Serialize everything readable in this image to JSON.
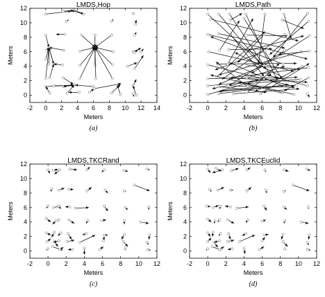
{
  "chart_data": [
    {
      "type": "vector-field",
      "title": "LMDS,Hop",
      "caption": "(a)",
      "xlabel": "Meters",
      "ylabel": "Meters",
      "xlim": [
        -2,
        14
      ],
      "ylim": [
        -1,
        12
      ],
      "xticks": [
        -2,
        0,
        2,
        4,
        6,
        8,
        10,
        12,
        14
      ],
      "yticks": [
        0,
        2,
        4,
        6,
        8,
        10,
        12
      ],
      "vectors": [
        [
          0,
          11.2,
          3.2,
          11.6
        ],
        [
          2.2,
          11.6,
          3.5,
          11.7
        ],
        [
          3.5,
          11.8,
          4.8,
          11.2
        ],
        [
          4.8,
          11.2,
          3.2,
          11.7
        ],
        [
          11,
          11.3,
          11.2,
          11.2
        ],
        [
          2.6,
          10.2,
          2.9,
          10.4
        ],
        [
          8.3,
          10.2,
          8.5,
          10.5
        ],
        [
          11.3,
          9.8,
          11.4,
          10.4
        ],
        [
          0,
          8.3,
          0.4,
          6.6
        ],
        [
          2.4,
          8.4,
          1.3,
          8.4
        ],
        [
          4.5,
          8.3,
          6.2,
          6.6
        ],
        [
          6.2,
          8.3,
          6.2,
          6.6
        ],
        [
          8.3,
          8.3,
          6.2,
          6.6
        ],
        [
          11.2,
          8.3,
          11.4,
          8.7
        ],
        [
          0.1,
          6.2,
          0.4,
          6.6
        ],
        [
          2.3,
          6.2,
          0.4,
          6.6
        ],
        [
          4.3,
          6.1,
          6.2,
          6.6
        ],
        [
          6.2,
          6.1,
          6.2,
          6.6
        ],
        [
          8.5,
          6,
          6.2,
          6.6
        ],
        [
          11,
          6,
          12,
          6.5
        ],
        [
          11.2,
          5.9,
          11.6,
          6.3
        ],
        [
          12,
          6,
          12.3,
          6.4
        ],
        [
          0,
          5,
          0.4,
          6.6
        ],
        [
          0.4,
          6.6,
          1,
          4.3
        ],
        [
          1,
          4.3,
          0.4,
          6.6
        ],
        [
          0.4,
          4.3,
          0.4,
          6.6
        ],
        [
          2.1,
          4.2,
          1,
          4.3
        ],
        [
          4.3,
          4.1,
          6.2,
          6.6
        ],
        [
          6.2,
          4.1,
          6.2,
          6.6
        ],
        [
          8.4,
          4.2,
          6.2,
          6.6
        ],
        [
          10.3,
          4,
          11.5,
          4.5
        ],
        [
          11.2,
          3.7,
          12.3,
          5.5
        ],
        [
          0,
          2.3,
          0.4,
          6.6
        ],
        [
          0.5,
          2.4,
          1,
          4.3
        ],
        [
          2.2,
          2.4,
          3.5,
          1.5
        ],
        [
          3.5,
          1.5,
          3.7,
          1.4
        ],
        [
          4.3,
          2.3,
          6.2,
          6.6
        ],
        [
          6.3,
          2.3,
          6.2,
          6.6
        ],
        [
          8.4,
          2.3,
          6.2,
          6.6
        ],
        [
          11,
          1.3,
          11.4,
          2.2
        ],
        [
          11.4,
          0,
          11,
          1.3
        ],
        [
          0,
          1.2,
          3.5,
          1.4
        ],
        [
          1,
          1.3,
          3.6,
          1.4
        ],
        [
          2.2,
          1.2,
          3.6,
          1.4
        ],
        [
          3.6,
          1.4,
          2.2,
          1.2
        ],
        [
          6,
          1.2,
          3.7,
          1.4
        ],
        [
          0.5,
          0.3,
          0,
          1.2
        ],
        [
          2.7,
          0.3,
          3.6,
          1.4
        ],
        [
          4.2,
          0.4,
          2.9,
          0.4
        ],
        [
          5.5,
          0.4,
          6.1,
          0.9
        ],
        [
          6.1,
          0.9,
          9.5,
          1.6
        ],
        [
          8.3,
          0.3,
          9.4,
          1.5
        ],
        [
          9.4,
          0.1,
          9,
          1.4
        ],
        [
          11,
          0.2,
          11.1,
          -0.2
        ]
      ]
    },
    {
      "type": "vector-field",
      "title": "LMDS,Path",
      "caption": "(b)",
      "xlabel": "Meters",
      "ylabel": "Meters",
      "xlim": [
        -2,
        12
      ],
      "ylim": [
        -1,
        12
      ],
      "xticks": [
        -2,
        0,
        2,
        4,
        6,
        8,
        10,
        12
      ],
      "yticks": [
        0,
        2,
        4,
        6,
        8,
        10,
        12
      ],
      "vectors": [
        [
          0,
          11.2,
          6,
          4.2
        ],
        [
          1.2,
          11.2,
          6.4,
          3.6
        ],
        [
          2.4,
          11.2,
          7,
          2.6
        ],
        [
          4.2,
          11.2,
          7.6,
          2.2
        ],
        [
          6.3,
          11.2,
          5.6,
          4.3
        ],
        [
          8.4,
          11.2,
          9.2,
          7.8
        ],
        [
          11,
          11.3,
          7.2,
          5.2
        ],
        [
          0.3,
          10.5,
          10,
          7.5
        ],
        [
          2.5,
          10.4,
          3.8,
          11.3
        ],
        [
          4,
          10.6,
          8.2,
          2.2
        ],
        [
          8.2,
          10.4,
          10.6,
          9.2
        ],
        [
          11.1,
          10.2,
          6.8,
          5.6
        ],
        [
          0,
          8.4,
          11,
          5
        ],
        [
          1.2,
          8.5,
          8.5,
          6.5
        ],
        [
          2.5,
          8.4,
          6.2,
          2.6
        ],
        [
          4.3,
          8.3,
          8.8,
          8.2
        ],
        [
          6.2,
          8.4,
          3.3,
          4.5
        ],
        [
          8.5,
          8.4,
          1.6,
          2.2
        ],
        [
          11.2,
          8.2,
          4.8,
          3
        ],
        [
          0.1,
          6,
          9.5,
          3.3
        ],
        [
          1.3,
          6.2,
          3.5,
          10.3
        ],
        [
          2.3,
          6.3,
          7.1,
          6.4
        ],
        [
          4.2,
          6.1,
          10.6,
          8.2
        ],
        [
          6.3,
          6.1,
          0.8,
          3.5
        ],
        [
          8.5,
          6.2,
          2.3,
          1.3
        ],
        [
          10.3,
          6,
          1.2,
          2.8
        ],
        [
          11.2,
          6.1,
          7.8,
          5.6
        ],
        [
          0,
          4.2,
          9.5,
          1.2
        ],
        [
          1.1,
          4.3,
          9.8,
          4.4
        ],
        [
          2.2,
          4.3,
          5,
          10.6
        ],
        [
          4.3,
          4.1,
          10.2,
          3.6
        ],
        [
          6.2,
          4.1,
          1.2,
          1.5
        ],
        [
          8.3,
          4.3,
          0.3,
          8.1
        ],
        [
          10.4,
          4,
          5.2,
          0.5
        ],
        [
          11.1,
          3.8,
          2.5,
          2.4
        ],
        [
          0,
          2.3,
          7.9,
          2.4
        ],
        [
          1,
          2.5,
          6.3,
          8.8
        ],
        [
          2.2,
          2.4,
          11,
          1.8
        ],
        [
          4.3,
          2.4,
          8.5,
          4
        ],
        [
          6.2,
          2.3,
          0.5,
          0.9
        ],
        [
          8.4,
          2.4,
          3,
          5.9
        ],
        [
          10.2,
          2.2,
          4.3,
          1.6
        ],
        [
          11.1,
          2.4,
          8.4,
          0.6
        ],
        [
          0,
          1.3,
          9.9,
          2.5
        ],
        [
          1.2,
          1.2,
          6.5,
          0.4
        ],
        [
          2.3,
          1.3,
          9.6,
          1.1
        ],
        [
          4.4,
          1.2,
          0.9,
          4.6
        ],
        [
          6,
          1.2,
          1.4,
          0.6
        ],
        [
          8.4,
          1.2,
          2.4,
          4.5
        ],
        [
          9.8,
          1.4,
          1.2,
          0.5
        ],
        [
          11,
          1.3,
          6.5,
          2.8
        ],
        [
          0,
          0.1,
          5.6,
          2.1
        ],
        [
          1.2,
          0.2,
          8.9,
          1.5
        ],
        [
          2.8,
          0.2,
          10.1,
          0.9
        ],
        [
          4.3,
          0.3,
          7.9,
          4.4
        ],
        [
          5.8,
          0.2,
          11.2,
          4.4
        ],
        [
          8.2,
          0.3,
          3.4,
          1.8
        ],
        [
          9.5,
          0.1,
          0.3,
          2.8
        ],
        [
          11,
          0.2,
          11.2,
          -0.3
        ]
      ]
    },
    {
      "type": "vector-field",
      "title": "LMDS,TKCRand",
      "caption": "(c)",
      "xlabel": "Meters",
      "ylabel": "Meters",
      "xlim": [
        -2,
        12
      ],
      "ylim": [
        -1,
        12
      ],
      "xticks": [
        -2,
        0,
        2,
        4,
        6,
        8,
        10,
        12
      ],
      "yticks": [
        0,
        2,
        4,
        6,
        8,
        10,
        12
      ],
      "vectors": [
        [
          0,
          11.2,
          0.2,
          10.7
        ],
        [
          0.6,
          11.1,
          1.1,
          11.3
        ],
        [
          1.3,
          11.2,
          0.7,
          10.6
        ],
        [
          2.4,
          11.3,
          3.2,
          11.2
        ],
        [
          4.3,
          11.2,
          4.6,
          11.6
        ],
        [
          6.2,
          11.2,
          5.9,
          10.9
        ],
        [
          8.4,
          11.1,
          8.8,
          11
        ],
        [
          10.9,
          11.3,
          11.2,
          11.2
        ],
        [
          0.4,
          8.6,
          0.3,
          8.2
        ],
        [
          1.2,
          8.4,
          1.8,
          8.7
        ],
        [
          2.3,
          8.5,
          2.8,
          8.5
        ],
        [
          4.3,
          8.3,
          4.8,
          8.8
        ],
        [
          6.3,
          8.4,
          6.6,
          8
        ],
        [
          8.4,
          8.3,
          8.6,
          8.2
        ],
        [
          9.5,
          9.1,
          11.2,
          8.3
        ],
        [
          0,
          6.2,
          -0.2,
          5.9
        ],
        [
          0.6,
          6,
          1.4,
          6.2
        ],
        [
          1.2,
          6.2,
          1.4,
          5.8
        ],
        [
          2.4,
          6.1,
          1.9,
          6.1
        ],
        [
          3,
          5.9,
          4.5,
          6
        ],
        [
          6.2,
          6.2,
          6.6,
          5.5
        ],
        [
          8.5,
          6,
          8.8,
          5.7
        ],
        [
          11.1,
          6.1,
          11.1,
          5.7
        ],
        [
          -0.2,
          4.5,
          0.3,
          4
        ],
        [
          0.9,
          4.2,
          0.5,
          3.7
        ],
        [
          1.2,
          4.3,
          1.1,
          4.1
        ],
        [
          2.3,
          4.3,
          2.9,
          3.8
        ],
        [
          4.4,
          4.2,
          4.2,
          3.8
        ],
        [
          5.9,
          4.2,
          6.4,
          4.3
        ],
        [
          8.4,
          4.2,
          8.4,
          3.7
        ],
        [
          10.2,
          4,
          11.1,
          3.8
        ],
        [
          -0.2,
          2.5,
          0.3,
          2.2
        ],
        [
          0.7,
          2.6,
          0.4,
          1.9
        ],
        [
          1.4,
          2.5,
          1.1,
          2.1
        ],
        [
          2.2,
          2.4,
          2.6,
          1.6
        ],
        [
          4.2,
          2.4,
          3.8,
          2.2
        ],
        [
          6.2,
          2.2,
          6.6,
          2.2
        ],
        [
          8.4,
          2.3,
          8.1,
          1.6
        ],
        [
          11.2,
          2.2,
          11.1,
          1.6
        ],
        [
          -0.1,
          1.3,
          0.3,
          1.7
        ],
        [
          0.7,
          1.3,
          1.1,
          0.6
        ],
        [
          1.2,
          1.4,
          0.6,
          1.2
        ],
        [
          2.1,
          1.3,
          2.9,
          1.5
        ],
        [
          3.5,
          1.2,
          5.2,
          2.2
        ],
        [
          6.1,
          1.4,
          6.2,
          2
        ],
        [
          8.3,
          1.3,
          8.8,
          0.6
        ],
        [
          10.9,
          1.2,
          11.1,
          0.9
        ],
        [
          0,
          0.3,
          -0.2,
          0.1
        ],
        [
          0.5,
          0.6,
          1.6,
          0.1
        ],
        [
          1.3,
          0.2,
          1.7,
          0.5
        ],
        [
          2.7,
          0.2,
          2.2,
          0.2
        ],
        [
          4,
          0.4,
          4,
          -0.5
        ],
        [
          5.7,
          0.2,
          6.1,
          0.6
        ],
        [
          8.5,
          0.4,
          8.5,
          0.1
        ],
        [
          11,
          0.2,
          11.3,
          0.1
        ]
      ]
    },
    {
      "type": "vector-field",
      "title": "LMDS,TKCEuclid",
      "caption": "(d)",
      "xlabel": "Meters",
      "ylabel": "Meters",
      "xlim": [
        -2,
        12
      ],
      "ylim": [
        -1,
        12
      ],
      "xticks": [
        -2,
        0,
        2,
        4,
        6,
        8,
        10,
        12
      ],
      "yticks": [
        0,
        2,
        4,
        6,
        8,
        10,
        12
      ],
      "vectors": [
        [
          0,
          11.3,
          0.3,
          10.8
        ],
        [
          0.9,
          11.4,
          1.5,
          11
        ],
        [
          1.6,
          11.2,
          0.5,
          10.8
        ],
        [
          2.6,
          11.1,
          3.4,
          11.4
        ],
        [
          4.3,
          11.2,
          4.7,
          11.5
        ],
        [
          6.3,
          11.2,
          6.4,
          10.9
        ],
        [
          8.4,
          11.2,
          8.9,
          11
        ],
        [
          10.9,
          11.3,
          11.3,
          11.1
        ],
        [
          0.2,
          8.5,
          0.4,
          8.2
        ],
        [
          1.1,
          8.4,
          1.8,
          8.8
        ],
        [
          2.5,
          8.4,
          2.8,
          8.4
        ],
        [
          4.3,
          8.3,
          4.8,
          8.8
        ],
        [
          6.4,
          8.4,
          6.5,
          8
        ],
        [
          8.4,
          8.2,
          8.6,
          8.4
        ],
        [
          9.4,
          9.1,
          11.2,
          8.3
        ],
        [
          -0.1,
          6.2,
          0.3,
          6.1
        ],
        [
          0.6,
          6,
          1.2,
          6.3
        ],
        [
          1.4,
          6.2,
          1.3,
          5.8
        ],
        [
          2.5,
          6.1,
          1.9,
          6.2
        ],
        [
          3.2,
          5.9,
          4.5,
          6.1
        ],
        [
          6.2,
          6.2,
          6.5,
          5.6
        ],
        [
          8.4,
          6.1,
          8.7,
          5.7
        ],
        [
          11.1,
          6.1,
          11.1,
          5.8
        ],
        [
          0,
          4.4,
          0.4,
          4
        ],
        [
          0.8,
          4.2,
          0.7,
          3.8
        ],
        [
          1.3,
          4.3,
          1.1,
          4
        ],
        [
          2.2,
          4.3,
          2.9,
          3.8
        ],
        [
          4.4,
          4.3,
          4.2,
          3.9
        ],
        [
          6,
          4.1,
          6.4,
          4.3
        ],
        [
          8.5,
          4.2,
          8.4,
          3.8
        ],
        [
          10.3,
          4,
          11.1,
          3.8
        ],
        [
          0,
          2.5,
          0.3,
          2
        ],
        [
          0.6,
          2.6,
          0.5,
          2
        ],
        [
          1.4,
          2.4,
          1.2,
          2.1
        ],
        [
          2.3,
          2.4,
          2.5,
          1.6
        ],
        [
          4.2,
          2.4,
          3.8,
          2.1
        ],
        [
          6.2,
          2.2,
          6.7,
          2.3
        ],
        [
          8.3,
          2.3,
          8.1,
          1.6
        ],
        [
          11.2,
          2.2,
          11.1,
          1.6
        ],
        [
          0,
          1.3,
          0.4,
          1.8
        ],
        [
          0.7,
          1.2,
          1.1,
          0.5
        ],
        [
          1.3,
          1.4,
          0.7,
          1.2
        ],
        [
          2.2,
          1.3,
          2.9,
          1.5
        ],
        [
          3.5,
          1.3,
          5.2,
          2.2
        ],
        [
          6,
          1.4,
          6.3,
          1.9
        ],
        [
          8.3,
          1.3,
          8.8,
          0.6
        ],
        [
          11,
          1.2,
          11.1,
          0.8
        ],
        [
          0,
          0.3,
          -0.2,
          0.1
        ],
        [
          0.5,
          0.6,
          1.5,
          0.1
        ],
        [
          1.3,
          0.2,
          1.8,
          0.6
        ],
        [
          2.7,
          0.3,
          2.2,
          0.2
        ],
        [
          4,
          0.4,
          4.1,
          -0.4
        ],
        [
          5.7,
          0.2,
          6.2,
          0.6
        ],
        [
          8.5,
          0.3,
          8.6,
          0.1
        ],
        [
          11,
          0.2,
          11.3,
          0.1
        ]
      ]
    }
  ]
}
